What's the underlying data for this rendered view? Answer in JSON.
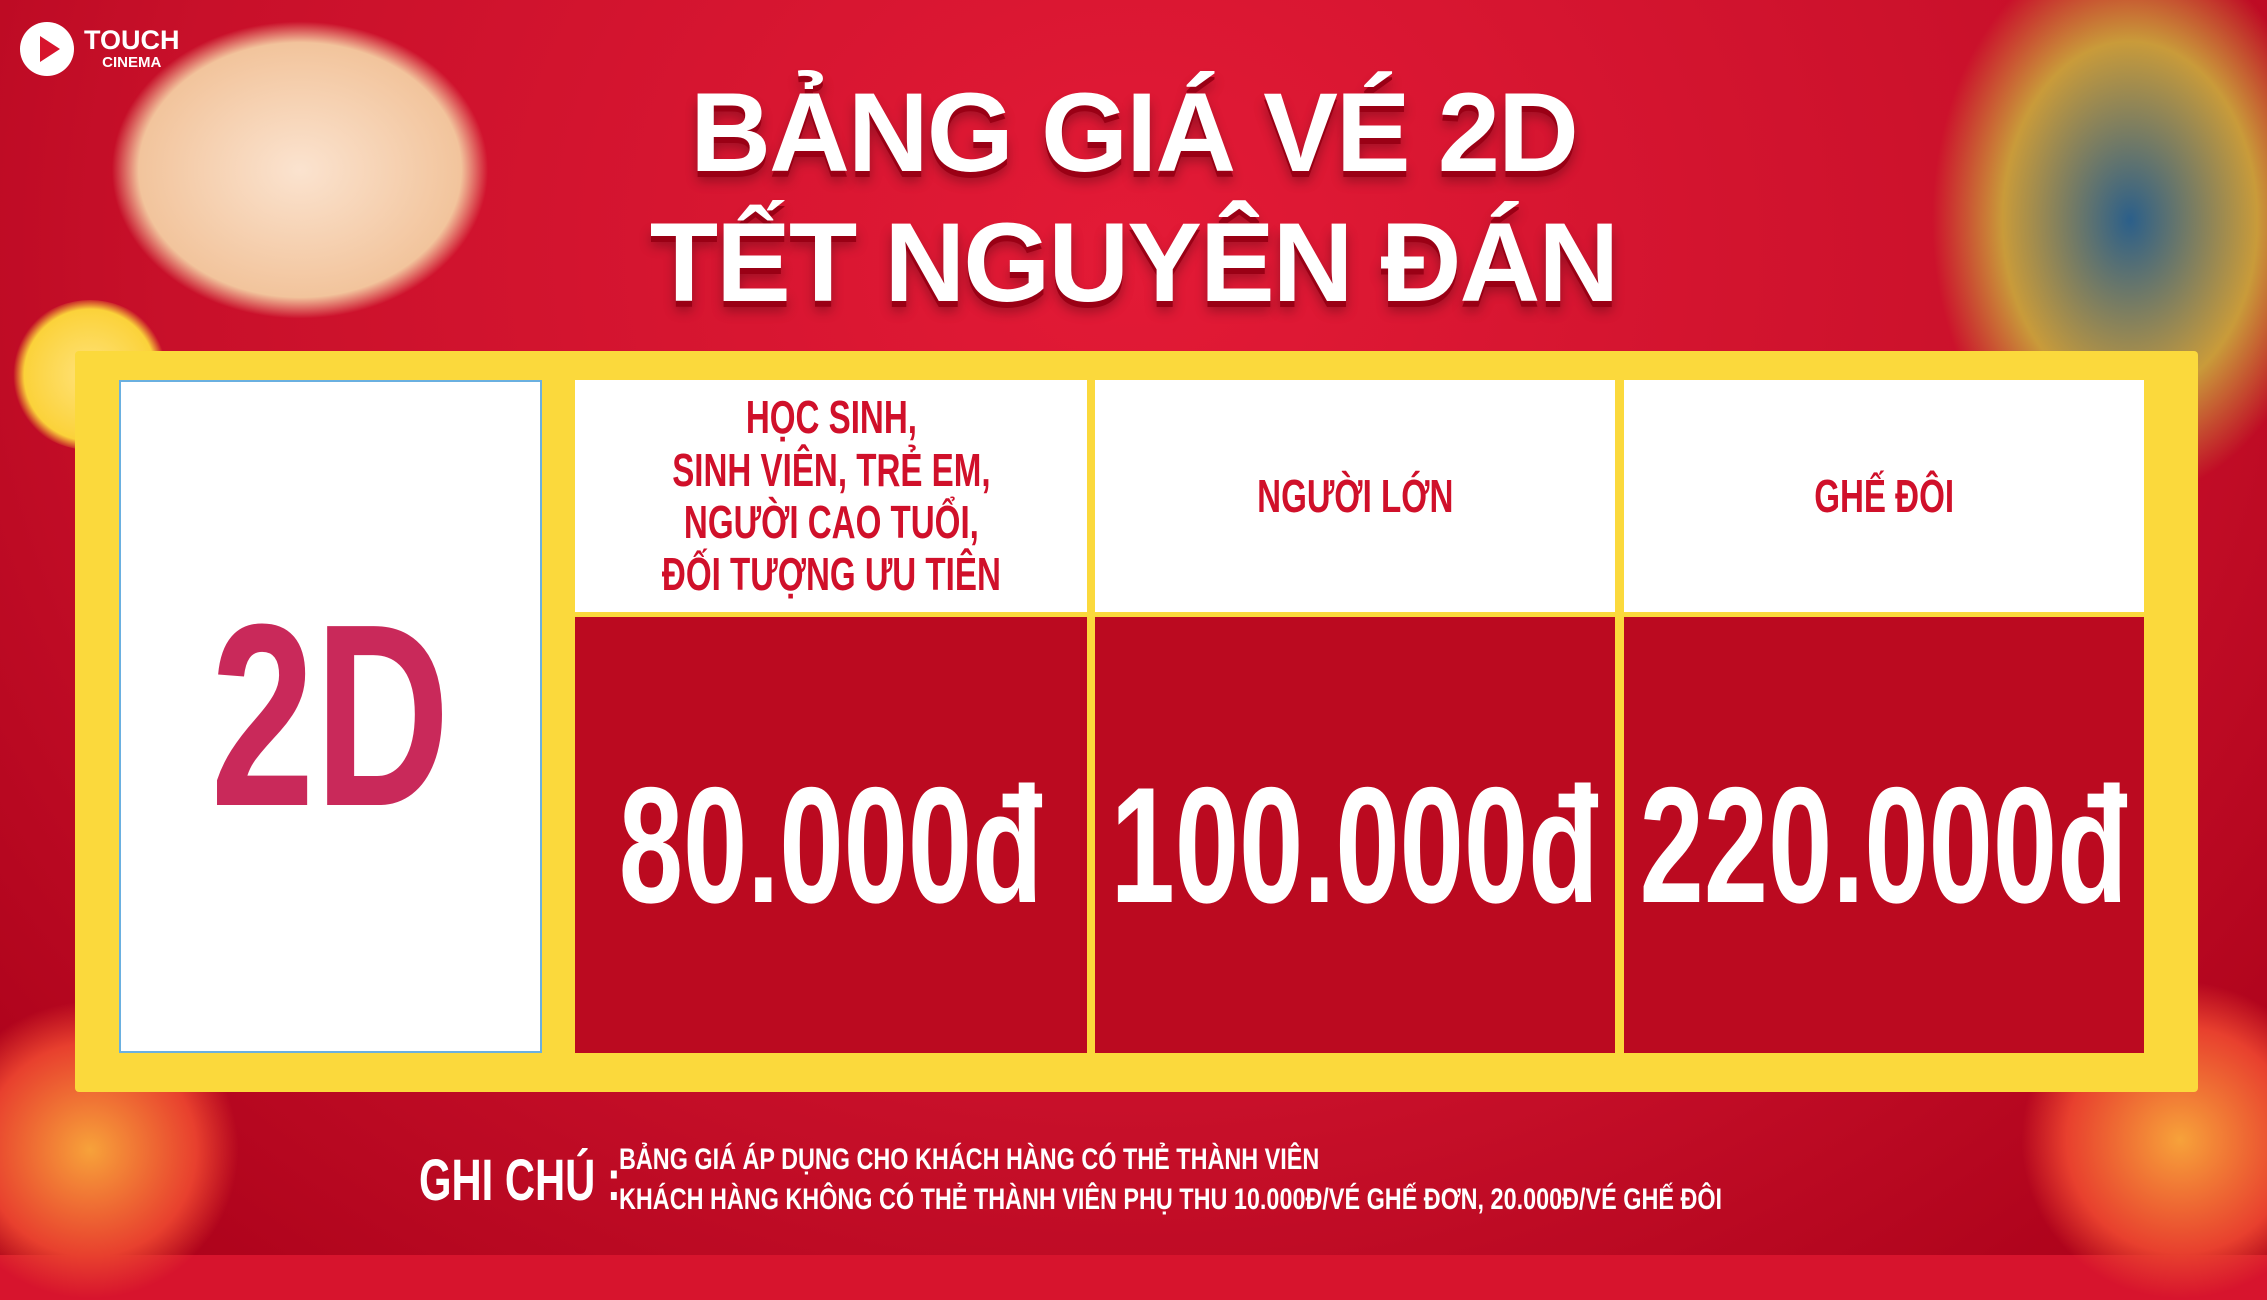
{
  "brand": {
    "name": "TOUCH",
    "sub": "CINEMA"
  },
  "title": {
    "line1": "BẢNG GIÁ VÉ 2D",
    "line2": "TẾT NGUYÊN ĐÁN"
  },
  "table": {
    "format": "2D",
    "columns": [
      {
        "header": "HỌC SINH,\nSINH VIÊN, TRẺ EM,\nNGƯỜI CAO TUỔI,\nĐỐI TƯỢNG ƯU TIÊN",
        "price": "80.000đ"
      },
      {
        "header": "NGƯỜI LỚN",
        "price": "100.000đ"
      },
      {
        "header": "GHẾ ĐÔI",
        "price": "220.000đ"
      }
    ]
  },
  "notes": {
    "label": "GHI CHÚ :",
    "lines": [
      "BẢNG GIÁ ÁP DỤNG CHO KHÁCH HÀNG CÓ THẺ THÀNH VIÊN",
      "KHÁCH HÀNG KHÔNG CÓ THẺ THÀNH VIÊN PHỤ THU 10.000Đ/VÉ GHẾ ĐƠN, 20.000Đ/VÉ GHẾ ĐÔI"
    ]
  },
  "colors": {
    "background": "#d7142d",
    "panel": "#fbd93c",
    "price_cell": "#bb0a20",
    "header_text": "#d0102a",
    "format_text": "#c9295a"
  }
}
